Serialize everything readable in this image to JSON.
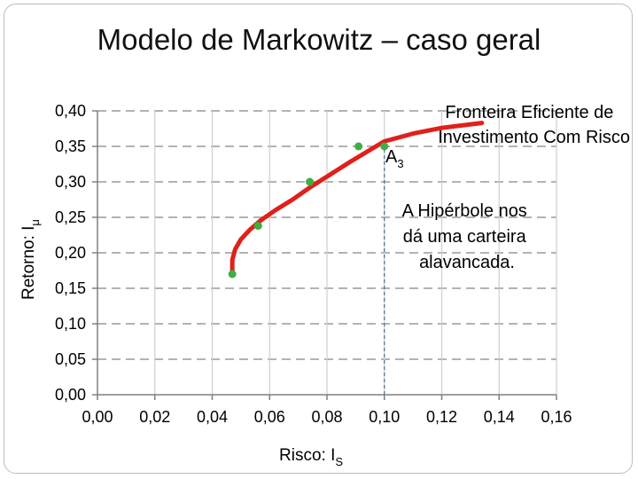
{
  "page": {
    "title": "Modelo de Markowitz – caso geral"
  },
  "chart_data": {
    "type": "line",
    "xlabel": "Risco: I",
    "xlabel_sub": "S",
    "ylabel": "Retorno: I",
    "ylabel_sub": "μ",
    "xlim": [
      0,
      0.16
    ],
    "ylim": [
      0,
      0.4
    ],
    "x_ticks": [
      "0,00",
      "0,02",
      "0,04",
      "0,06",
      "0,08",
      "0,10",
      "0,12",
      "0,14",
      "0,16"
    ],
    "y_ticks": [
      "0,00",
      "0,05",
      "0,10",
      "0,15",
      "0,20",
      "0,25",
      "0,30",
      "0,35",
      "0,40"
    ],
    "grid": "horizontal dashed",
    "series": [
      {
        "type": "line",
        "color": "#e0201b",
        "x": [
          0.047,
          0.047,
          0.048,
          0.05,
          0.053,
          0.057,
          0.062,
          0.068,
          0.074,
          0.081,
          0.088,
          0.095,
          0.1,
          0.11,
          0.12,
          0.134
        ],
        "y": [
          0.17,
          0.19,
          0.205,
          0.219,
          0.232,
          0.246,
          0.26,
          0.275,
          0.292,
          0.31,
          0.328,
          0.345,
          0.357,
          0.368,
          0.376,
          0.383
        ]
      },
      {
        "type": "scatter",
        "color": "#3cb043",
        "x": [
          0.047,
          0.056,
          0.074,
          0.091,
          0.1
        ],
        "y": [
          0.17,
          0.238,
          0.3,
          0.35,
          0.35
        ]
      }
    ],
    "reference_lines": [
      {
        "type": "vertical",
        "x": 0.1,
        "from_y": 0,
        "to_y": 0.35,
        "style": "dashed",
        "color": "#4f6f8f"
      }
    ],
    "annotations": [
      {
        "lines": [
          "Fronteira Eficiente de",
          "Investimento Com Risco"
        ]
      },
      {
        "text": "A",
        "sub": "3"
      },
      {
        "lines": [
          "A Hipérbole nos",
          "dá uma carteira",
          "alavancada."
        ]
      }
    ]
  }
}
